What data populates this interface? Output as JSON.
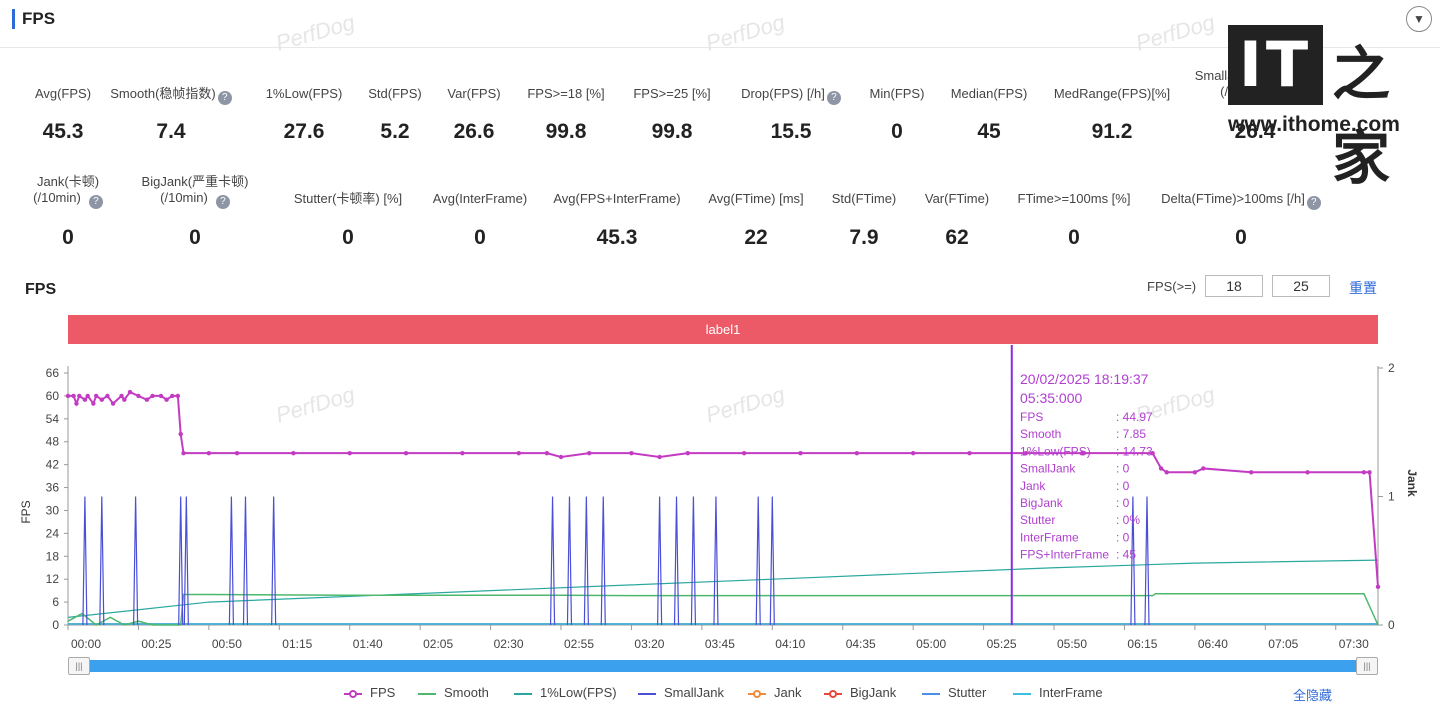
{
  "header": {
    "title": "FPS",
    "collapse_icon": "chevron-down-icon"
  },
  "watermark": "PerfDog",
  "logo": {
    "it": "IT",
    "zhi": "之家",
    "url": "www.ithome.com"
  },
  "metrics_row1": [
    {
      "label": "Avg(FPS)",
      "value": "45.3",
      "help": false
    },
    {
      "label": "Smooth(稳帧指数)",
      "value": "7.4",
      "help": true
    },
    {
      "label": "1%Low(FPS)",
      "value": "27.6",
      "help": false
    },
    {
      "label": "Std(FPS)",
      "value": "5.2",
      "help": false
    },
    {
      "label": "Var(FPS)",
      "value": "26.6",
      "help": false
    },
    {
      "label": "FPS>=18 [%]",
      "value": "99.8",
      "help": false
    },
    {
      "label": "FPS>=25 [%]",
      "value": "99.8",
      "help": false
    },
    {
      "label": "Drop(FPS) [/h]",
      "value": "15.5",
      "help": true
    },
    {
      "label": "Min(FPS)",
      "value": "0",
      "help": false
    },
    {
      "label": "Median(FPS)",
      "value": "45",
      "help": false
    },
    {
      "label": "MedRange(FPS)[%]",
      "value": "91.2",
      "help": false
    },
    {
      "label": "SmallJank(微小卡顿)",
      "label2": "(/10min)",
      "value": "26.4",
      "help": true
    }
  ],
  "metrics_row2": [
    {
      "label": "Jank(卡顿)",
      "label2": "(/10min)",
      "value": "0",
      "help": true
    },
    {
      "label": "BigJank(严重卡顿)",
      "label2": "(/10min)",
      "value": "0",
      "help": true
    },
    {
      "label": "Stutter(卡顿率) [%]",
      "value": "0",
      "help": false
    },
    {
      "label": "Avg(InterFrame)",
      "value": "0",
      "help": false
    },
    {
      "label": "Avg(FPS+InterFrame)",
      "value": "45.3",
      "help": false
    },
    {
      "label": "Avg(FTime) [ms]",
      "value": "22",
      "help": false
    },
    {
      "label": "Std(FTime)",
      "value": "7.9",
      "help": false
    },
    {
      "label": "Var(FTime)",
      "value": "62",
      "help": false
    },
    {
      "label": "FTime>=100ms [%]",
      "value": "0",
      "help": false
    },
    {
      "label": "Delta(FTime)>100ms [/h]",
      "value": "0",
      "help": true
    }
  ],
  "chart_section": {
    "title": "FPS",
    "threshold_label": "FPS(>=)",
    "threshold1": "18",
    "threshold2": "25",
    "reset_label": "重置",
    "band_label": "label1"
  },
  "tooltip": {
    "datetime": "20/02/2025 18:19:37",
    "time": "05:35:000",
    "rows": [
      {
        "k": "FPS",
        "v": ": 44.97"
      },
      {
        "k": "Smooth",
        "v": ": 7.85"
      },
      {
        "k": "1%Low(FPS)",
        "v": ": 14.73"
      },
      {
        "k": "SmallJank",
        "v": ": 0"
      },
      {
        "k": "Jank",
        "v": ": 0"
      },
      {
        "k": "BigJank",
        "v": ": 0"
      },
      {
        "k": "Stutter",
        "v": ": 0%"
      },
      {
        "k": "InterFrame",
        "v": ": 0"
      },
      {
        "k": "FPS+InterFrame",
        "v": ": 45"
      }
    ]
  },
  "legend": [
    {
      "name": "FPS",
      "color": "#c33bc3",
      "marker": "dot"
    },
    {
      "name": "Smooth",
      "color": "#4cb86b",
      "marker": "line"
    },
    {
      "name": "1%Low(FPS)",
      "color": "#2aa89f",
      "marker": "line"
    },
    {
      "name": "SmallJank",
      "color": "#4a4fd6",
      "marker": "line"
    },
    {
      "name": "Jank",
      "color": "#f08a3c",
      "marker": "dot"
    },
    {
      "name": "BigJank",
      "color": "#e8473b",
      "marker": "dot"
    },
    {
      "name": "Stutter",
      "color": "#4c8fe6",
      "marker": "line"
    },
    {
      "name": "InterFrame",
      "color": "#3dc0e0",
      "marker": "line"
    }
  ],
  "hide_all_label": "全隐藏",
  "chart_data": {
    "type": "line",
    "ylabel": "FPS",
    "ylabel_right": "Jank",
    "ylim": [
      0,
      66
    ],
    "yticks": [
      0,
      6,
      12,
      18,
      24,
      30,
      36,
      42,
      48,
      54,
      60,
      66
    ],
    "ylim_right": [
      0,
      2
    ],
    "yticks_right": [
      0,
      1,
      2
    ],
    "xlim": [
      0,
      465
    ],
    "x_tick_labels": [
      "00:00",
      "00:25",
      "00:50",
      "01:15",
      "01:40",
      "02:05",
      "02:30",
      "02:55",
      "03:20",
      "03:45",
      "04:10",
      "04:35",
      "05:00",
      "05:25",
      "05:50",
      "06:15",
      "06:40",
      "07:05",
      "07:30"
    ],
    "x_tick_seconds": [
      0,
      25,
      50,
      75,
      100,
      125,
      150,
      175,
      200,
      225,
      250,
      275,
      300,
      325,
      350,
      375,
      400,
      425,
      450
    ],
    "cursor_x": 335,
    "series": [
      {
        "name": "FPS",
        "x": [
          0,
          2,
          3,
          4,
          6,
          7,
          9,
          10,
          12,
          14,
          16,
          19,
          20,
          22,
          25,
          28,
          30,
          33,
          35,
          37,
          39,
          40,
          41,
          50,
          60,
          80,
          100,
          120,
          140,
          160,
          170,
          175,
          185,
          200,
          210,
          220,
          240,
          260,
          280,
          300,
          320,
          340,
          360,
          385,
          388,
          390,
          400,
          403,
          420,
          440,
          460,
          462,
          465
        ],
        "y": [
          60,
          60,
          58,
          60,
          59,
          60,
          58,
          60,
          59,
          60,
          58,
          60,
          59,
          61,
          60,
          59,
          60,
          60,
          59,
          60,
          60,
          50,
          45,
          45,
          45,
          45,
          45,
          45,
          45,
          45,
          45,
          44,
          45,
          45,
          44,
          45,
          45,
          45,
          45,
          45,
          45,
          45,
          45,
          45,
          41,
          40,
          40,
          41,
          40,
          40,
          40,
          40,
          10
        ]
      },
      {
        "name": "Smooth",
        "x": [
          0,
          5,
          10,
          15,
          20,
          25,
          30,
          35,
          40,
          41,
          50,
          100,
          175,
          200,
          250,
          300,
          350,
          385,
          386,
          460,
          465
        ],
        "y": [
          1,
          3,
          0,
          2,
          0,
          1,
          0,
          0,
          0,
          8,
          8,
          7.8,
          7.8,
          7.7,
          7.7,
          7.7,
          7.7,
          7.7,
          8.2,
          8.2,
          0
        ]
      },
      {
        "name": "1%Low(FPS)",
        "x": [
          0,
          50,
          100,
          150,
          200,
          250,
          300,
          350,
          400,
          465
        ],
        "y": [
          2,
          6,
          7.5,
          9,
          10.5,
          12,
          13.5,
          15,
          16.2,
          17
        ]
      },
      {
        "name": "SmallJank",
        "x": [
          6,
          12,
          24,
          40,
          42,
          58,
          63,
          73,
          172,
          178,
          184,
          190,
          210,
          216,
          222,
          230,
          245,
          250,
          378,
          383
        ],
        "y": [
          1,
          1,
          1,
          1,
          1,
          1,
          1,
          1,
          1,
          1,
          1,
          1,
          1,
          1,
          1,
          1,
          1,
          1,
          1,
          1
        ]
      },
      {
        "name": "Jank",
        "x": [
          0,
          465
        ],
        "y": [
          0,
          0
        ]
      },
      {
        "name": "BigJank",
        "x": [
          0,
          465
        ],
        "y": [
          0,
          0
        ]
      },
      {
        "name": "Stutter",
        "x": [
          0,
          465
        ],
        "y": [
          0,
          0
        ]
      },
      {
        "name": "InterFrame",
        "x": [
          0,
          465
        ],
        "y": [
          0,
          0
        ]
      }
    ]
  }
}
